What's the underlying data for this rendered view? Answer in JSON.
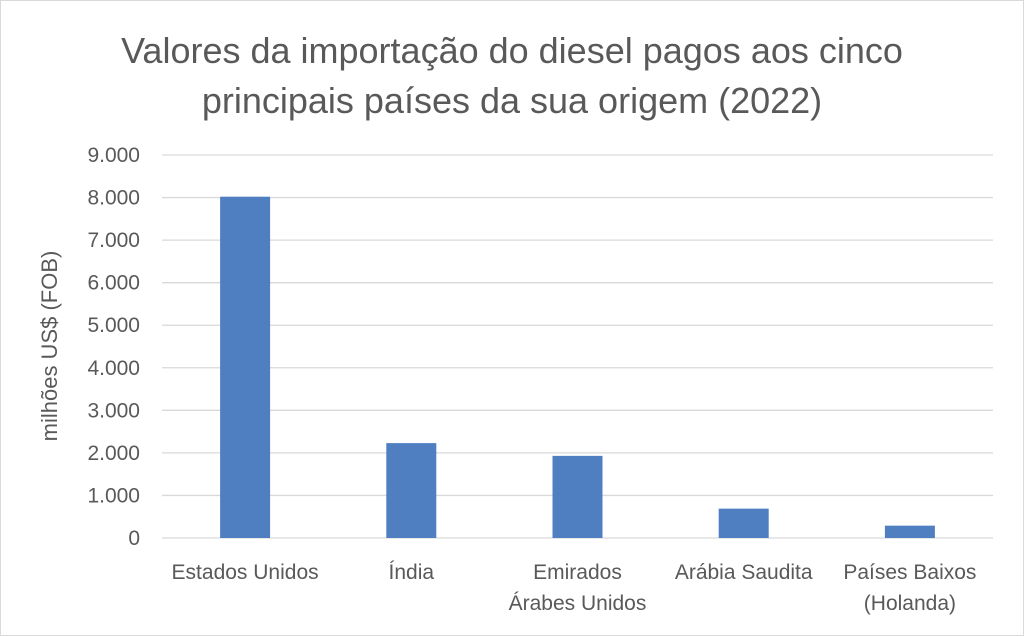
{
  "chart_data": {
    "type": "bar",
    "title_lines": [
      "Valores da importação do diesel pagos aos cinco",
      "principais países da sua origem (2022)"
    ],
    "ylabel": "milhões US$ (FOB)",
    "xlabel": "",
    "ylim": [
      0,
      9000
    ],
    "ytick_step": 1000,
    "ytick_labels": [
      "0",
      "1.000",
      "2.000",
      "3.000",
      "4.000",
      "5.000",
      "6.000",
      "7.000",
      "8.000",
      "9.000"
    ],
    "grid": true,
    "legend": "none",
    "bar_color": "#4f7fc1",
    "grid_color": "#d9d9d9",
    "categories": [
      [
        "Estados Unidos"
      ],
      [
        "Índia"
      ],
      [
        "Emirados",
        "Árabes Unidos"
      ],
      [
        "Arábia Saudita"
      ],
      [
        "Países Baixos",
        "(Holanda)"
      ]
    ],
    "values": [
      8020,
      2230,
      1930,
      690,
      290
    ]
  }
}
